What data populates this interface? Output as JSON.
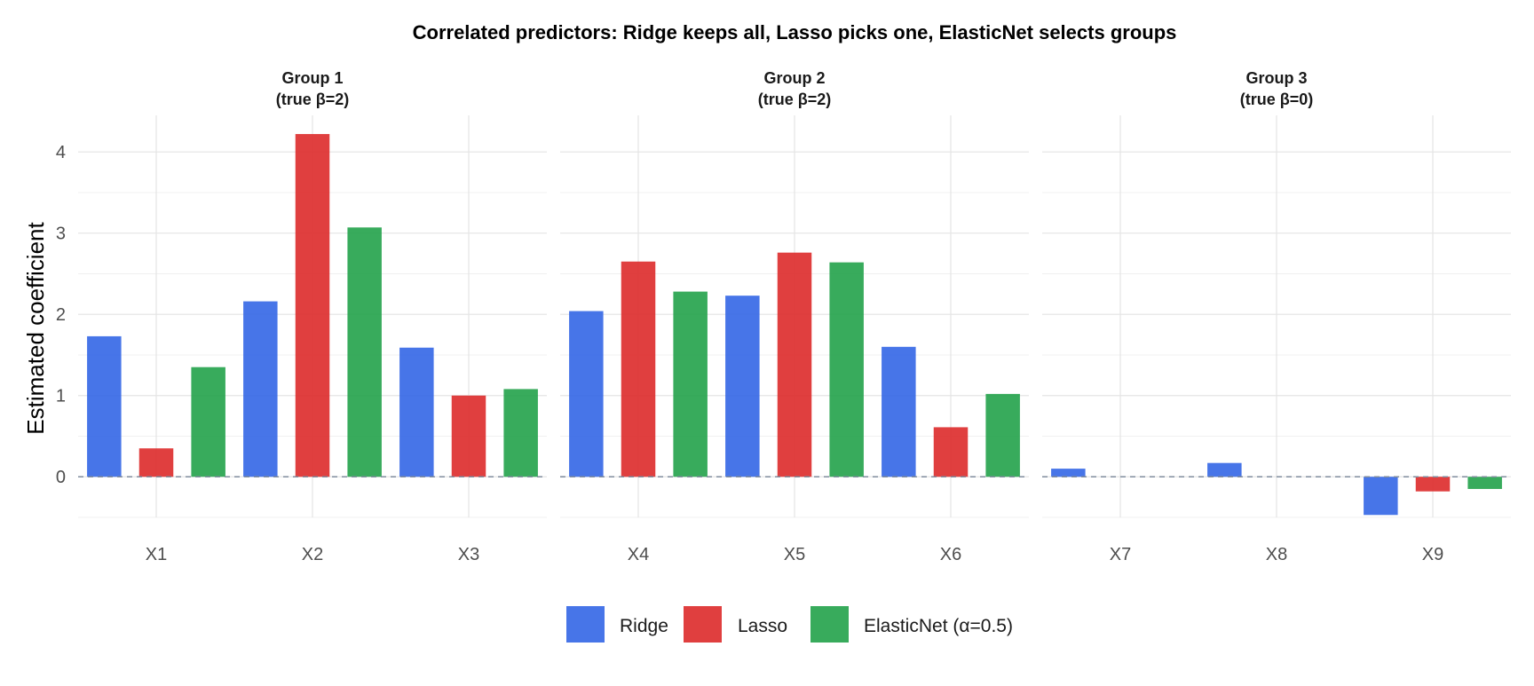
{
  "chart_data": {
    "type": "bar",
    "title": "Correlated predictors: Ridge keeps all, Lasso picks one, ElasticNet selects groups",
    "ylabel": "Estimated coefficient",
    "xlabel": "",
    "ylim": [
      -0.5,
      4.45
    ],
    "y_ticks": [
      0,
      1,
      2,
      3,
      4
    ],
    "grid": true,
    "legend_position": "bottom",
    "reference_line": {
      "y": 0,
      "style": "dashed"
    },
    "series": [
      {
        "name": "Ridge",
        "color": "#3366e6"
      },
      {
        "name": "Lasso",
        "color": "#dd2a2a"
      },
      {
        "name": "ElasticNet (α=0.5)",
        "color": "#22a24a"
      }
    ],
    "panels": [
      {
        "title_line1": "Group 1",
        "title_line2": "(true β=2)",
        "categories": [
          "X1",
          "X2",
          "X3"
        ],
        "values": [
          [
            1.73,
            0.35,
            1.35
          ],
          [
            2.16,
            4.22,
            3.07
          ],
          [
            1.59,
            1.0,
            1.08
          ]
        ]
      },
      {
        "title_line1": "Group 2",
        "title_line2": "(true β=2)",
        "categories": [
          "X4",
          "X5",
          "X6"
        ],
        "values": [
          [
            2.04,
            2.65,
            2.28
          ],
          [
            2.23,
            2.76,
            2.64
          ],
          [
            1.6,
            0.61,
            1.02
          ]
        ]
      },
      {
        "title_line1": "Group 3",
        "title_line2": "(true β=0)",
        "categories": [
          "X7",
          "X8",
          "X9"
        ],
        "values": [
          [
            0.1,
            0.0,
            0.0
          ],
          [
            0.17,
            0.0,
            0.0
          ],
          [
            -0.47,
            -0.18,
            -0.15
          ]
        ]
      }
    ]
  }
}
